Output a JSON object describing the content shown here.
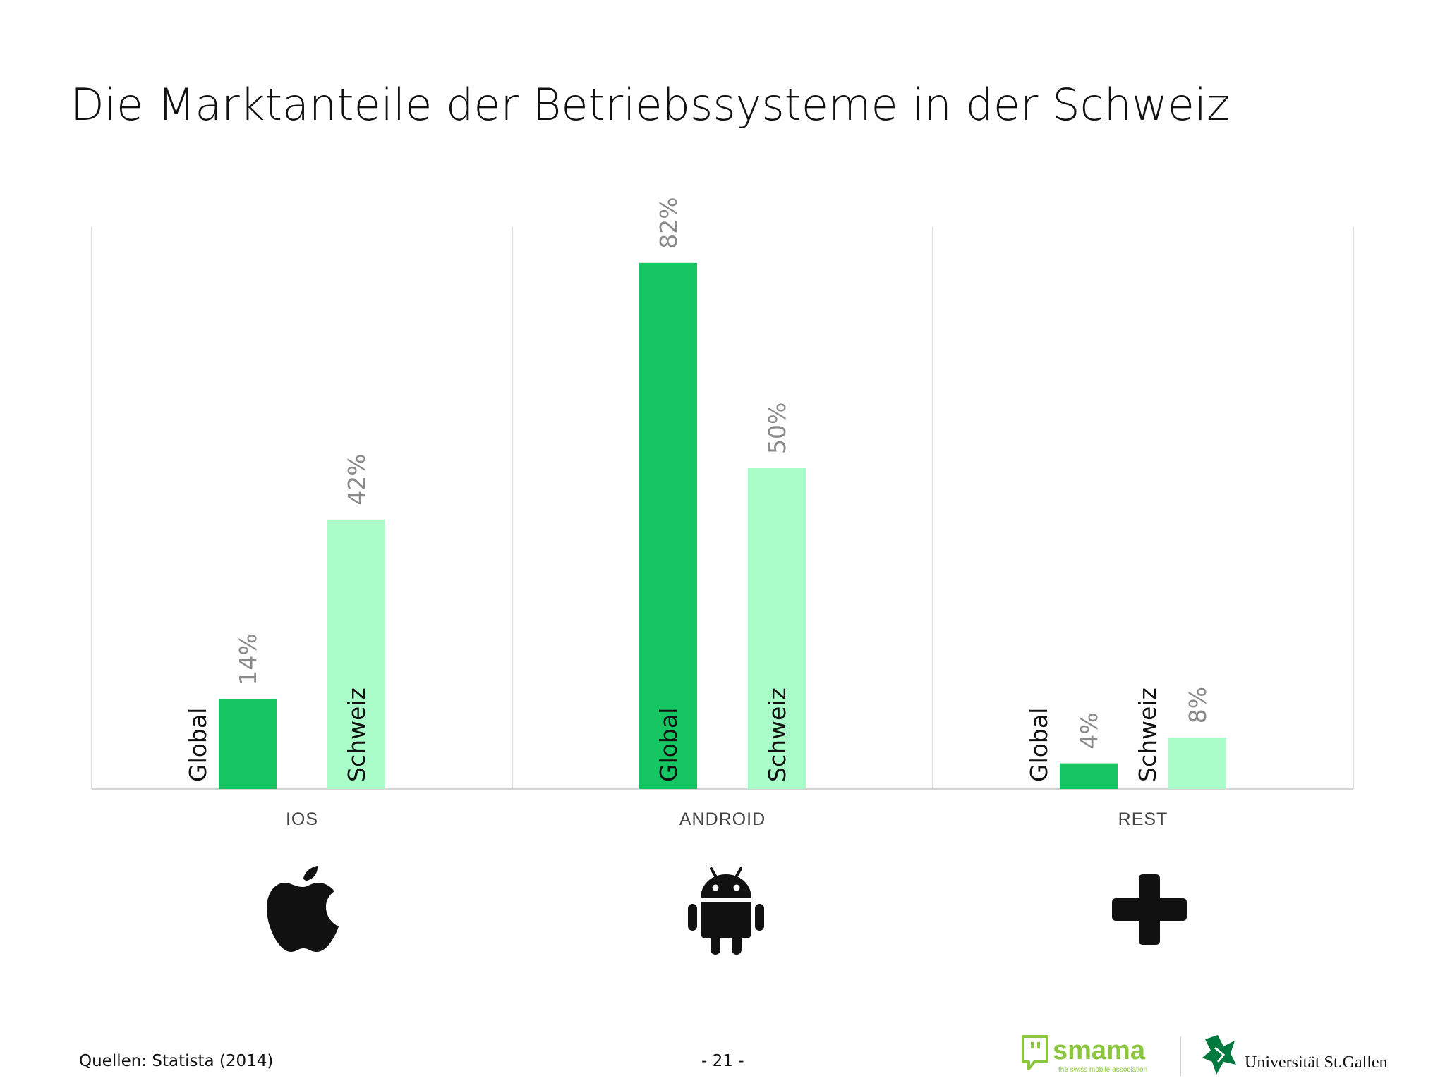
{
  "title": "Die Marktanteile der Betriebssysteme in der Schweiz",
  "chart_data": {
    "type": "bar",
    "categories": [
      "IOS",
      "ANDROID",
      "REST"
    ],
    "series": [
      {
        "name": "Global",
        "values": [
          14,
          82,
          4
        ],
        "labels": [
          "14%",
          "82%",
          "4%"
        ],
        "color": "#15c663"
      },
      {
        "name": "Schweiz",
        "values": [
          42,
          50,
          8
        ],
        "labels": [
          "42%",
          "50%",
          "8%"
        ],
        "color": "#aafcc8"
      }
    ],
    "ylim": [
      0,
      90
    ],
    "grid": false,
    "value_label_color": "#8a8a8a"
  },
  "icons": [
    {
      "name": "apple-icon",
      "category": "IOS"
    },
    {
      "name": "android-icon",
      "category": "ANDROID"
    },
    {
      "name": "plus-icon",
      "category": "REST"
    }
  ],
  "footer": {
    "source": "Quellen: Statista (2014)",
    "page": "- 21 -"
  },
  "logos": {
    "smama_name": "smama",
    "smama_tagline": "the swiss mobile association",
    "smama_color": "#8cc63f",
    "hsg_name": "Universität St.Gallen",
    "hsg_color": "#00793f"
  }
}
